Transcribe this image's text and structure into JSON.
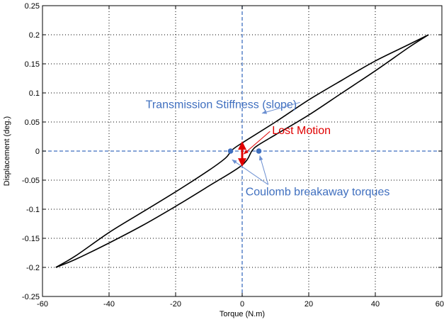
{
  "chart_data": {
    "type": "line",
    "title": "",
    "xlabel": "Torque  (N.m)",
    "ylabel": "Displacement (deg.)",
    "xlim": [
      -60,
      60
    ],
    "ylim": [
      -0.25,
      0.25
    ],
    "xticks": [
      -60,
      -40,
      -20,
      0,
      20,
      40,
      60
    ],
    "xtick_labels": [
      "-60",
      "-40",
      "-20",
      "0",
      "20",
      "40",
      "60"
    ],
    "yticks": [
      -0.25,
      -0.2,
      -0.15,
      -0.1,
      -0.05,
      0,
      0.05,
      0.1,
      0.15,
      0.2,
      0.25
    ],
    "ytick_labels": [
      "-0.25",
      "-0.2",
      "-0.15",
      "-0.1",
      "-0.05",
      "0",
      "0.05",
      "0.1",
      "0.15",
      "0.2",
      "0.25"
    ],
    "grid": true,
    "colors": {
      "curve": "#000000",
      "blue": "#3f6fbf",
      "red": "#e00000"
    },
    "series": [
      {
        "x": [
          -56,
          -50,
          -40,
          -30,
          -20,
          -10,
          -5,
          -3,
          0,
          10,
          20,
          30,
          40,
          50,
          56
        ],
        "y": [
          -0.2,
          -0.18,
          -0.14,
          -0.105,
          -0.07,
          -0.033,
          -0.012,
          0.002,
          0.014,
          0.05,
          0.088,
          0.122,
          0.155,
          0.183,
          0.2
        ]
      },
      {
        "x": [
          56,
          50,
          40,
          30,
          20,
          10,
          5,
          3,
          0,
          -10,
          -20,
          -30,
          -40,
          -50,
          -56
        ],
        "y": [
          0.2,
          0.178,
          0.138,
          0.1,
          0.062,
          0.028,
          0.011,
          0.001,
          -0.024,
          -0.06,
          -0.095,
          -0.128,
          -0.158,
          -0.186,
          -0.2
        ]
      }
    ],
    "reference_lines": {
      "horizontal": 0,
      "vertical": 0
    },
    "markers": [
      {
        "x": -3.5,
        "y": 0
      },
      {
        "x": 5,
        "y": 0
      }
    ],
    "lost_motion_arrow": {
      "x": 0,
      "y_from": -0.024,
      "y_to": 0.014
    },
    "annotations": [
      {
        "text": "Transmission Stiffness (slope)",
        "color": "#3f6fbf",
        "x": -29,
        "y": 0.074,
        "arrow_to": {
          "x": 6,
          "y": 0.065
        }
      },
      {
        "text": "Lost Motion",
        "color": "#e00000",
        "x": 9,
        "y": 0.029,
        "arrow_to": {
          "x": 0.5,
          "y": -0.005
        }
      },
      {
        "text": "Coulomb breakaway torques",
        "color": "#3f6fbf",
        "x": 1,
        "y": -0.076,
        "arrow_to": [
          {
            "x": -3,
            "y": -0.015
          },
          {
            "x": 5.3,
            "y": -0.008
          }
        ]
      }
    ]
  }
}
